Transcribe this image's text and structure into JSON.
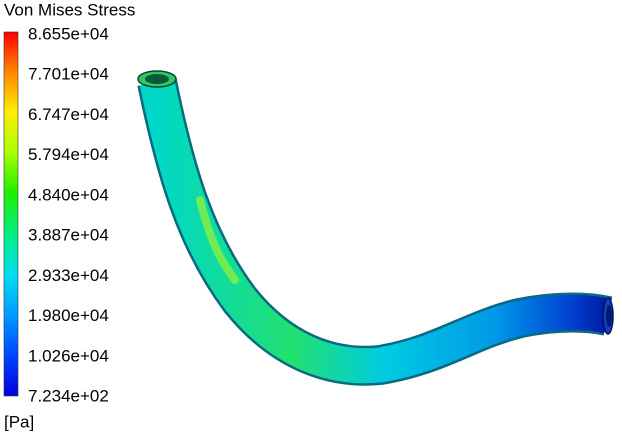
{
  "legend": {
    "title": "Von Mises Stress",
    "ticks": [
      "8.655e+04",
      "7.701e+04",
      "6.747e+04",
      "5.794e+04",
      "4.840e+04",
      "3.887e+04",
      "2.933e+04",
      "1.980e+04",
      "1.026e+04",
      "7.234e+02"
    ],
    "unit": "[Pa]"
  }
}
